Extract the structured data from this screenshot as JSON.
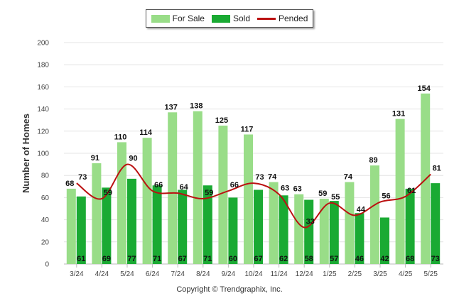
{
  "legend": {
    "for_sale": "For Sale",
    "sold": "Sold",
    "pended": "Pended"
  },
  "colors": {
    "for_sale": "#99dd88",
    "sold": "#1aaa33",
    "pended": "#bb1111"
  },
  "copyright": "Copyright © Trendgraphix, Inc.",
  "chart_data": {
    "type": "bar",
    "title": "",
    "ylabel": "Number of Homes",
    "xlabel": "",
    "ylim": [
      0,
      200
    ],
    "yticks": [
      0,
      20,
      40,
      60,
      80,
      100,
      120,
      140,
      160,
      180,
      200
    ],
    "grid": true,
    "legend_position": "top-center",
    "categories": [
      "3/24",
      "4/24",
      "5/24",
      "6/24",
      "7/24",
      "8/24",
      "9/24",
      "10/24",
      "11/24",
      "12/24",
      "1/25",
      "2/25",
      "3/25",
      "4/25",
      "5/25"
    ],
    "series": [
      {
        "name": "For Sale",
        "type": "bar",
        "values": [
          68,
          91,
          110,
          114,
          137,
          138,
          125,
          117,
          74,
          63,
          59,
          74,
          89,
          131,
          154
        ]
      },
      {
        "name": "Sold",
        "type": "bar",
        "values": [
          61,
          69,
          77,
          71,
          67,
          71,
          60,
          67,
          62,
          58,
          57,
          46,
          42,
          68,
          73
        ]
      },
      {
        "name": "Pended",
        "type": "line",
        "values": [
          73,
          59,
          90,
          66,
          64,
          59,
          66,
          73,
          63,
          33,
          55,
          44,
          56,
          61,
          81
        ]
      }
    ]
  }
}
